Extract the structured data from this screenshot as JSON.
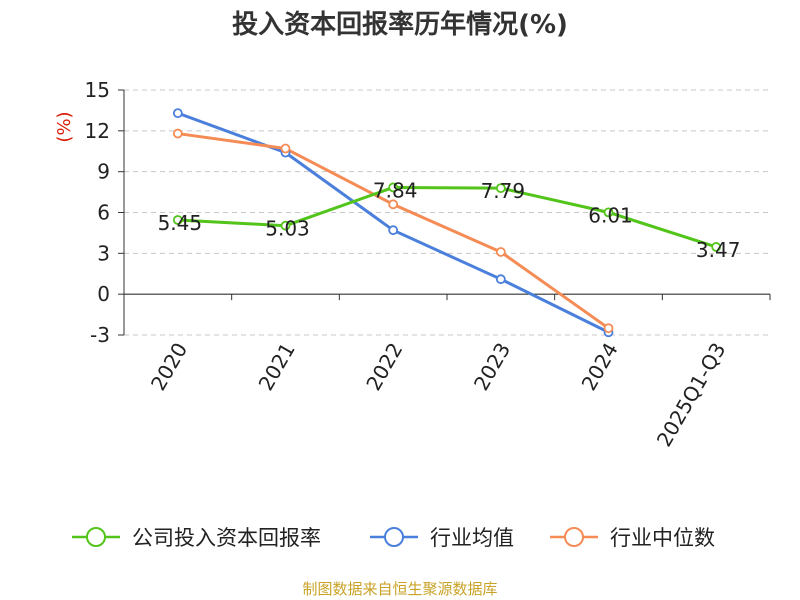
{
  "chart_data": {
    "type": "line",
    "title": "投入资本回报率历年情况(%)",
    "ylabel": "(%)",
    "xlabel": "",
    "ylim": [
      -3,
      15
    ],
    "yticks": [
      -3,
      0,
      3,
      6,
      9,
      12,
      15
    ],
    "categories": [
      "2020",
      "2021",
      "2022",
      "2023",
      "2024",
      "2025Q1-Q3"
    ],
    "grid": true,
    "legend_position": "bottom",
    "series": [
      {
        "name": "公司投入资本回报率",
        "color": "#52c41a",
        "values": [
          5.45,
          5.03,
          7.84,
          7.79,
          6.01,
          3.47
        ],
        "show_labels": true
      },
      {
        "name": "行业均值",
        "color": "#4a7fdc",
        "values": [
          13.3,
          10.4,
          4.7,
          1.1,
          -2.8,
          null
        ],
        "show_labels": false
      },
      {
        "name": "行业中位数",
        "color": "#f58b55",
        "values": [
          11.8,
          10.7,
          6.6,
          3.1,
          -2.5,
          null
        ],
        "show_labels": false
      }
    ],
    "source": "制图数据来自恒生聚源数据库"
  }
}
